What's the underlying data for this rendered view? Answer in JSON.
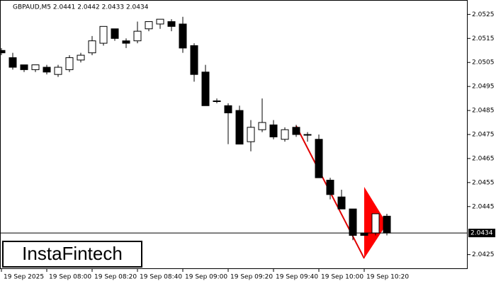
{
  "chart_data": {
    "type": "candlestick",
    "title": "GBPAUD,M5  2.0441 2.0442 2.0433 2.0434",
    "x": [
      "19 Sep 2025",
      null,
      null,
      null,
      "19 Sep 08:00",
      null,
      null,
      null,
      "19 Sep 08:20",
      null,
      null,
      null,
      "19 Sep 08:40",
      null,
      null,
      null,
      "19 Sep 09:00",
      null,
      null,
      null,
      "19 Sep 09:20",
      null,
      null,
      null,
      "19 Sep 09:40",
      null,
      null,
      null,
      "19 Sep 10:00",
      null,
      null,
      null,
      "19 Sep 10:20",
      null,
      null
    ],
    "open": [
      2.051,
      2.0507,
      2.0504,
      2.0502,
      2.0503,
      2.05,
      2.0502,
      2.0506,
      2.0509,
      2.0513,
      2.0519,
      2.0514,
      2.0514,
      2.0519,
      2.0521,
      2.0522,
      2.0521,
      2.0512,
      2.0501,
      2.0489,
      2.0487,
      2.0485,
      2.0472,
      2.0477,
      2.0479,
      2.0473,
      2.0478,
      2.0475,
      2.0473,
      2.0456,
      2.0449,
      2.0444,
      2.0434,
      2.0434,
      2.0441
    ],
    "high": [
      2.0511,
      2.0509,
      2.0504,
      2.0504,
      2.0504,
      2.0504,
      2.0508,
      2.0509,
      2.0516,
      2.052,
      2.0519,
      2.0515,
      2.0522,
      2.0522,
      2.0523,
      2.0523,
      2.0524,
      2.0513,
      2.0504,
      2.049,
      2.0488,
      2.0487,
      2.0481,
      2.049,
      2.0481,
      2.0478,
      2.0479,
      2.0476,
      2.0475,
      2.0457,
      2.0452,
      2.0444,
      2.0434,
      2.0442,
      2.0442
    ],
    "low": [
      2.0508,
      2.0502,
      2.0501,
      2.0501,
      2.05,
      2.0499,
      2.0501,
      2.0505,
      2.0508,
      2.0512,
      2.0514,
      2.0511,
      2.0513,
      2.0518,
      2.0519,
      2.0518,
      2.0509,
      2.0497,
      2.0487,
      2.0488,
      2.0471,
      2.0471,
      2.0468,
      2.0476,
      2.0473,
      2.0472,
      2.0474,
      2.0472,
      2.0457,
      2.0448,
      2.0444,
      2.0431,
      2.0433,
      2.0433,
      2.0433
    ],
    "close": [
      2.0509,
      2.0503,
      2.0502,
      2.0504,
      2.0501,
      2.0503,
      2.0507,
      2.0508,
      2.0514,
      2.052,
      2.0515,
      2.0513,
      2.0518,
      2.0522,
      2.0523,
      2.052,
      2.0511,
      2.05,
      2.0487,
      2.0489,
      2.0484,
      2.0471,
      2.0478,
      2.048,
      2.0474,
      2.0477,
      2.0475,
      2.0475,
      2.0457,
      2.045,
      2.0444,
      2.0433,
      2.0433,
      2.0442,
      2.0434
    ],
    "up_color": "#ffffff",
    "down_color": "#000000",
    "ylim": [
      2.0419,
      2.0531
    ],
    "yticks": [
      2.0425,
      2.0445,
      2.0455,
      2.0465,
      2.0475,
      2.0485,
      2.0495,
      2.0505,
      2.0515,
      2.0525
    ],
    "current_price": {
      "value": 2.0434,
      "label": "2.0434"
    }
  },
  "logo": "InstaFintech"
}
